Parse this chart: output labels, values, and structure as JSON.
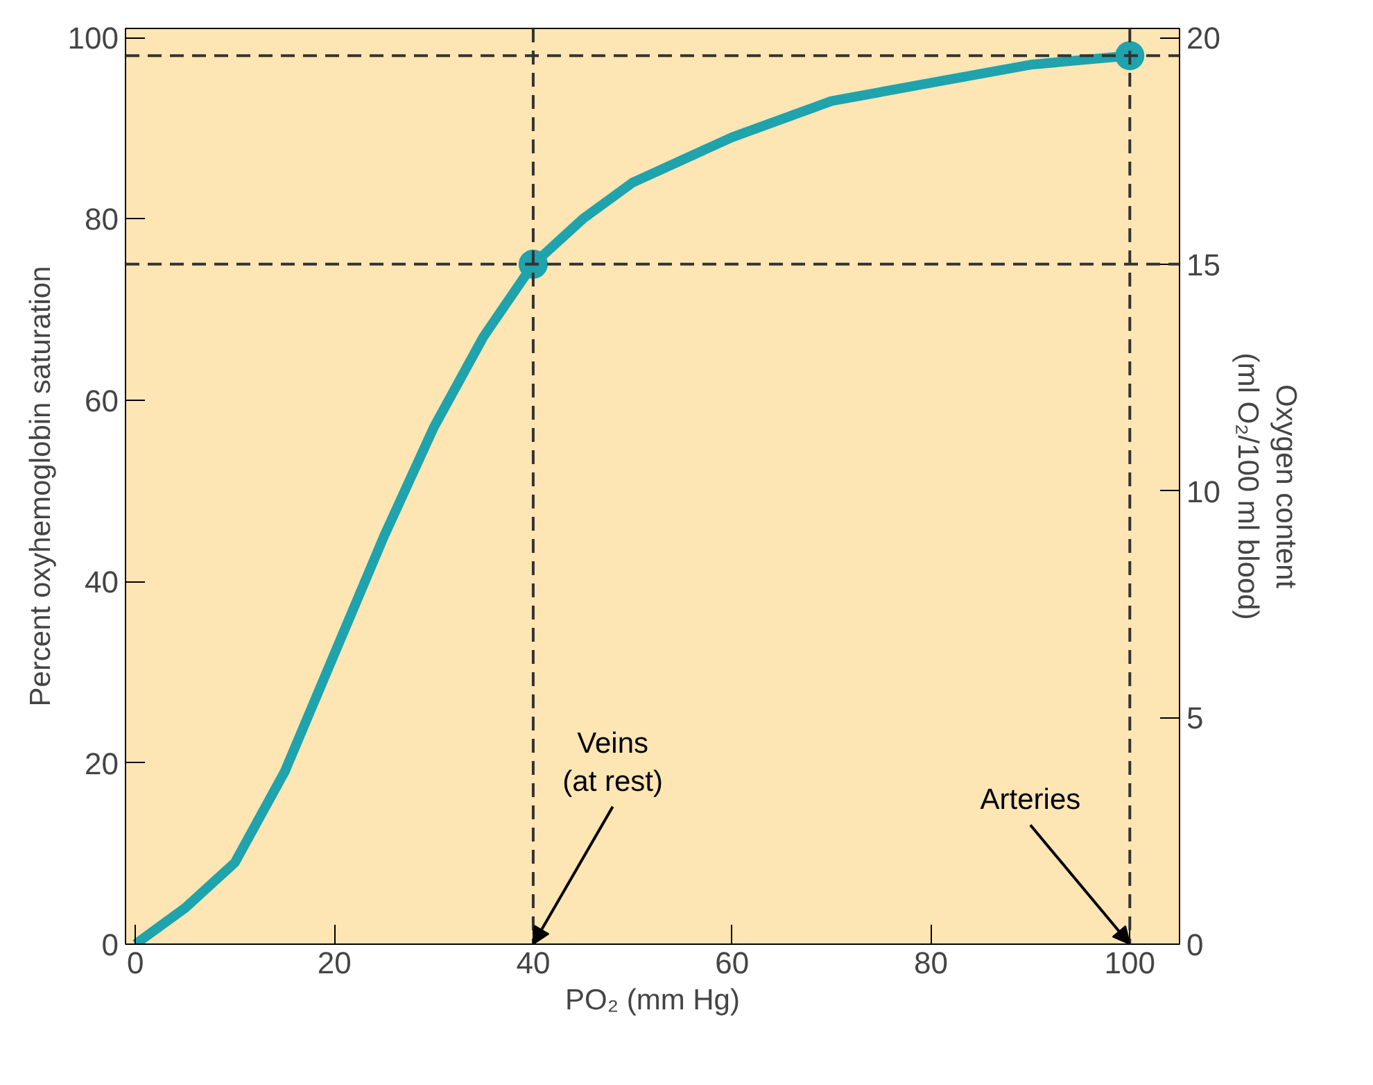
{
  "chart_data": {
    "type": "line",
    "xlabel": "PO₂ (mm Hg)",
    "ylabel": "Percent oxyhemoglobin saturation",
    "y2label": "Oxygen content\n(ml O₂/100 ml blood)",
    "xlim": [
      -1,
      105
    ],
    "ylim": [
      0,
      101
    ],
    "y2lim": [
      0,
      20.2
    ],
    "xticks": [
      0,
      20,
      40,
      60,
      80,
      100
    ],
    "yticks": [
      0,
      20,
      40,
      60,
      80,
      100
    ],
    "y2ticks": [
      0,
      5,
      10,
      15,
      20
    ],
    "grid": false,
    "series": [
      {
        "color": "#1fa3ad",
        "x": [
          0,
          5,
          10,
          15,
          20,
          25,
          30,
          35,
          40,
          45,
          50,
          60,
          70,
          80,
          90,
          100
        ],
        "values": [
          0,
          4,
          9,
          19,
          32,
          45,
          57,
          67,
          75,
          80,
          84,
          89,
          93,
          95,
          97,
          98
        ]
      },
      {
        "type": "scatter",
        "color": "#1fa3ad",
        "marker": "circle",
        "x": [
          40,
          100
        ],
        "values": [
          75,
          98
        ]
      }
    ],
    "ref_lines": [
      {
        "axis": "y",
        "value": 98,
        "color": "#333333",
        "line_style": "dashed"
      },
      {
        "axis": "y",
        "value": 75,
        "color": "#333333",
        "line_style": "dashed"
      },
      {
        "axis": "x",
        "value": 40,
        "color": "#333333",
        "line_style": "dashed"
      },
      {
        "axis": "x",
        "value": 100,
        "color": "#333333",
        "line_style": "dashed"
      }
    ],
    "annotations": [
      {
        "text": "Veins\n(at rest)",
        "x": 40,
        "y": 0
      },
      {
        "text": "Arteries",
        "x": 100,
        "y": 0
      }
    ]
  }
}
